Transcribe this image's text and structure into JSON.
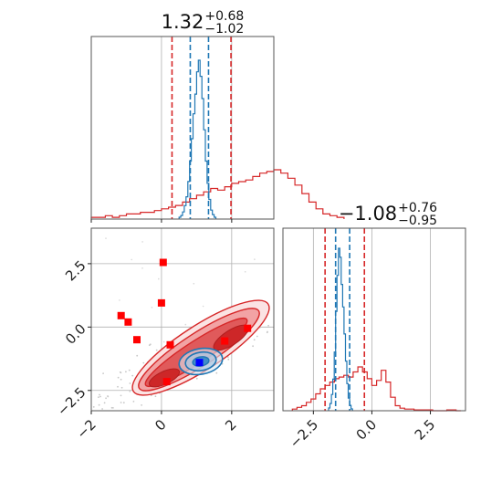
{
  "chart_data": {
    "type": "corner",
    "colors": {
      "red": "#d62728",
      "blue": "#1f77b4",
      "marker_red": "#ff0000",
      "marker_blue": "#0000ff"
    },
    "param1": {
      "title_value": "1.32",
      "title_plus": "+0.68",
      "title_minus": "−1.02",
      "xlim": [
        -2,
        3.2
      ],
      "ticks": [
        -2,
        0,
        2
      ],
      "tick_labels": [
        "−2",
        "0",
        "2"
      ],
      "red_quantiles": [
        0.3,
        1.98
      ],
      "blue_quantiles": [
        0.82,
        1.34
      ],
      "red_hist": {
        "edges_start": -2.0,
        "bin_width": 0.2,
        "counts": [
          1,
          1,
          2,
          1,
          2,
          3,
          3,
          4,
          4,
          5,
          6,
          7,
          8,
          10,
          12,
          14,
          16,
          18,
          17,
          19,
          21,
          22,
          23,
          25,
          27,
          28,
          29,
          27,
          24,
          20,
          15,
          10,
          6,
          3,
          2,
          1
        ]
      },
      "blue_hist": {
        "edges_start": 0.5,
        "bin_width": 0.05,
        "counts": [
          2,
          4,
          8,
          15,
          25,
          42,
          65,
          90,
          118,
          140,
          165,
          178,
          160,
          135,
          100,
          65,
          40,
          22,
          10,
          5,
          2
        ]
      }
    },
    "param2": {
      "title_value": "−1.08",
      "title_plus": "+0.76",
      "title_minus": "−0.95",
      "xlim": [
        -3.8,
        4.0
      ],
      "ticks": [
        -2.5,
        0.0,
        2.5
      ],
      "tick_labels": [
        "−2.5",
        "0.0",
        "2.5"
      ],
      "red_quantiles": [
        -2.0,
        -0.32
      ],
      "blue_quantiles": [
        -1.55,
        -0.95
      ],
      "red_hist": {
        "edges_start": -3.4,
        "bin_width": 0.2,
        "counts": [
          2,
          4,
          6,
          10,
          14,
          20,
          26,
          30,
          34,
          38,
          40,
          42,
          40,
          46,
          52,
          46,
          38,
          30,
          36,
          48,
          34,
          16,
          6,
          3,
          2,
          2,
          1,
          1,
          1,
          1,
          0,
          0,
          0,
          1,
          1,
          0
        ]
      },
      "blue_hist": {
        "edges_start": -1.85,
        "bin_width": 0.06,
        "counts": [
          3,
          8,
          18,
          35,
          65,
          110,
          150,
          180,
          170,
          140,
          115,
          85,
          55,
          30,
          14,
          6,
          2
        ]
      }
    },
    "joint": {
      "xlim": [
        -2,
        3.2
      ],
      "ylim": [
        -3.3,
        3.9
      ],
      "yticks": [
        -2.5,
        0.0,
        2.5
      ],
      "ytick_labels": [
        "−2.5",
        "0.0",
        "2.5"
      ],
      "red_markers": [
        [
          0.05,
          2.55
        ],
        [
          0.0,
          0.95
        ],
        [
          -1.15,
          0.45
        ],
        [
          -0.95,
          0.2
        ],
        [
          -0.7,
          -0.5
        ],
        [
          0.25,
          -0.7
        ],
        [
          1.8,
          -0.55
        ],
        [
          2.45,
          -0.05
        ],
        [
          0.15,
          -2.15
        ]
      ],
      "blue_markers": [
        [
          1.08,
          -1.4
        ]
      ]
    }
  }
}
